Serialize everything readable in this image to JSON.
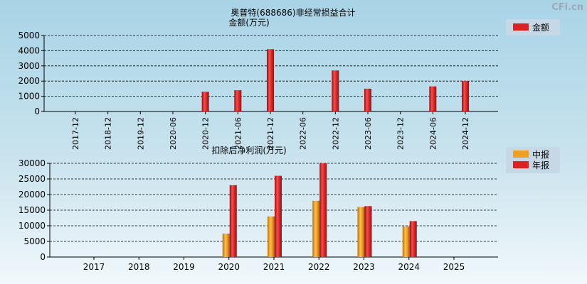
{
  "watermark": "CFi.cn",
  "colors": {
    "bar_red": "#e02020",
    "bar_orange": "#f0a020",
    "grid": "#000000",
    "axis": "#000000"
  },
  "chart_data": [
    {
      "type": "bar",
      "title": "奥普特(688686)非经常损益合计",
      "subtitle": "金额(万元)",
      "categories": [
        "2017-12",
        "2018-12",
        "2019-12",
        "2020-06",
        "2020-12",
        "2021-06",
        "2021-12",
        "2022-06",
        "2022-12",
        "2023-06",
        "2023-12",
        "2024-06",
        "2024-12"
      ],
      "series": [
        {
          "name": "金额",
          "color": "#e02020",
          "values": [
            null,
            null,
            null,
            null,
            1300,
            1400,
            4100,
            null,
            2700,
            1500,
            null,
            1650,
            2000
          ]
        }
      ],
      "ylim": [
        0,
        5000
      ],
      "yticks": [
        0,
        1000,
        2000,
        3000,
        4000,
        5000
      ],
      "grid": true,
      "legend": "top-right"
    },
    {
      "type": "bar",
      "title": "扣除后净利润(万元)",
      "categories": [
        "2017",
        "2018",
        "2019",
        "2020",
        "2021",
        "2022",
        "2023",
        "2024",
        "2025"
      ],
      "series": [
        {
          "name": "中报",
          "color": "#f0a020",
          "values": [
            null,
            null,
            null,
            7500,
            13000,
            18000,
            16000,
            9800,
            null
          ]
        },
        {
          "name": "年报",
          "color": "#e02020",
          "values": [
            null,
            null,
            null,
            23000,
            26000,
            30000,
            16300,
            11500,
            null
          ]
        }
      ],
      "ylim": [
        0,
        30000
      ],
      "yticks": [
        0,
        5000,
        10000,
        15000,
        20000,
        25000,
        30000
      ],
      "grid": true,
      "legend": "top-right"
    }
  ]
}
